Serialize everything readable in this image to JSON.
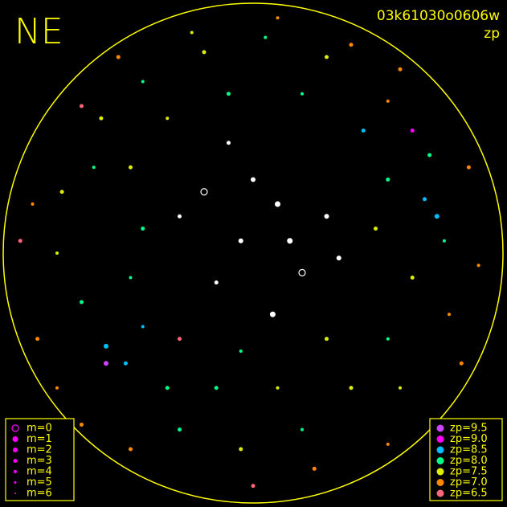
{
  "chart_data": {
    "type": "scatter",
    "title": "NE",
    "subtitle": "03k61030o0606w",
    "color_label": "zp",
    "xlim": [
      -1,
      1
    ],
    "ylim": [
      -1,
      1
    ],
    "horizon_color": "#ffff00",
    "no_zp_color": "#ffffff",
    "m_legend": [
      {
        "value": 0,
        "label": "m=0"
      },
      {
        "value": 1,
        "label": "m=1"
      },
      {
        "value": 2,
        "label": "m=2"
      },
      {
        "value": 3,
        "label": "m=3"
      },
      {
        "value": 4,
        "label": "m=4"
      },
      {
        "value": 5,
        "label": "m=5"
      },
      {
        "value": 6,
        "label": "m=6"
      }
    ],
    "m_legend_color": "#ff00ff",
    "zp_legend": [
      {
        "value": 9.5,
        "label": "zp=9.5",
        "color": "#cc44ff"
      },
      {
        "value": 9.0,
        "label": "zp=9.0",
        "color": "#ff00ff"
      },
      {
        "value": 8.5,
        "label": "zp=8.5",
        "color": "#00bfff"
      },
      {
        "value": 8.0,
        "label": "zp=8.0",
        "color": "#00ff88"
      },
      {
        "value": 7.5,
        "label": "zp=7.5",
        "color": "#ddee00"
      },
      {
        "value": 7.0,
        "label": "zp=7.0",
        "color": "#ff8800"
      },
      {
        "value": 6.5,
        "label": "zp=6.5",
        "color": "#ff6677"
      }
    ],
    "points": {
      "x": [
        -0.62,
        -0.45,
        -0.2,
        0.05,
        0.3,
        0.55,
        0.72,
        0.7,
        0.78,
        0.65,
        0.55,
        0.4,
        0.2,
        -0.05,
        -0.3,
        -0.52,
        -0.6,
        -0.45,
        -0.7,
        -0.8,
        -0.78,
        -0.65,
        -0.88,
        -0.9,
        -0.55,
        0.1,
        0.6,
        0.88,
        0.92,
        0.85,
        0.55,
        0.0,
        -0.5,
        -0.8,
        -0.35,
        -0.15,
        0.1,
        0.3,
        -0.3,
        -0.05,
        0.5,
        0.55,
        0.45,
        0.2,
        -0.1,
        -0.35,
        -0.5,
        -0.45,
        -0.5,
        0.65,
        -0.6,
        0.75,
        -0.7,
        0.4,
        -0.25,
        0.8,
        0.25,
        -0.7,
        -0.95,
        0.6,
        0.0,
        0.1,
        -0.05,
        0.15,
        0.2,
        -0.15,
        0.3,
        -0.1,
        0.08,
        -0.2,
        0.35,
        -0.3
      ],
      "y": [
        0.55,
        0.7,
        0.82,
        0.88,
        0.8,
        0.62,
        0.4,
        0.22,
        0.05,
        -0.1,
        -0.35,
        -0.55,
        -0.72,
        -0.8,
        -0.72,
        -0.45,
        -0.38,
        -0.3,
        -0.2,
        0.0,
        0.25,
        0.35,
        -0.35,
        0.2,
        0.8,
        0.96,
        0.75,
        0.35,
        -0.05,
        -0.45,
        -0.78,
        -0.95,
        -0.8,
        -0.55,
        -0.55,
        -0.55,
        -0.55,
        -0.35,
        -0.35,
        -0.4,
        0.1,
        0.3,
        0.5,
        0.65,
        0.65,
        0.55,
        0.35,
        0.1,
        -0.1,
        0.5,
        -0.45,
        0.15,
        0.6,
        0.85,
        0.9,
        -0.25,
        -0.88,
        -0.7,
        0.05,
        -0.55,
        0.3,
        0.2,
        0.05,
        0.05,
        -0.08,
        -0.12,
        0.15,
        0.45,
        -0.25,
        0.25,
        -0.02,
        0.15
      ],
      "zp": [
        7.5,
        8.0,
        7.5,
        8.0,
        7.5,
        7.0,
        8.0,
        8.5,
        8.0,
        7.5,
        8.0,
        7.5,
        8.0,
        7.5,
        8.0,
        8.5,
        8.5,
        8.5,
        8.0,
        7.5,
        7.5,
        8.0,
        7.0,
        7.0,
        7.0,
        7.0,
        7.0,
        7.0,
        7.0,
        7.0,
        7.0,
        6.5,
        7.0,
        7.0,
        8.0,
        8.0,
        7.5,
        7.5,
        6.5,
        8.0,
        7.5,
        8.0,
        8.5,
        8.0,
        8.0,
        7.5,
        7.5,
        8.0,
        8.0,
        9.0,
        9.5,
        8.5,
        6.5,
        7.0,
        7.5,
        7.0,
        7.0,
        7.0,
        6.5,
        7.5,
        null,
        null,
        null,
        null,
        null,
        null,
        null,
        null,
        null,
        null,
        null,
        null
      ],
      "m": [
        3,
        4,
        3,
        4,
        3,
        4,
        3,
        3,
        4,
        3,
        4,
        3,
        4,
        3,
        3,
        3,
        2,
        4,
        3,
        4,
        3,
        4,
        3,
        4,
        3,
        4,
        3,
        3,
        4,
        3,
        4,
        3,
        3,
        4,
        3,
        3,
        4,
        3,
        3,
        4,
        3,
        3,
        3,
        4,
        3,
        4,
        3,
        3,
        4,
        3,
        2,
        2,
        3,
        3,
        4,
        4,
        3,
        3,
        3,
        4,
        2,
        1,
        2,
        1,
        0,
        3,
        2,
        3,
        1,
        0,
        2,
        3
      ]
    }
  }
}
